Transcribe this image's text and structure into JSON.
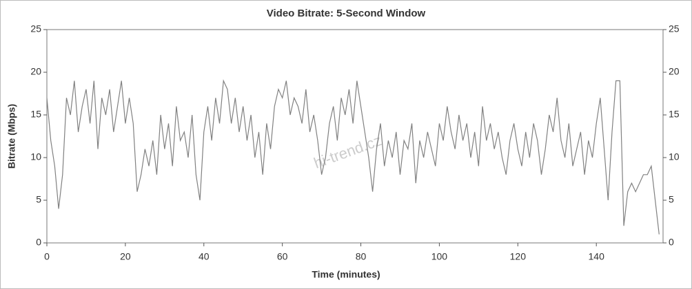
{
  "chart_data": {
    "type": "line",
    "title": "Video Bitrate: 5-Second Window",
    "x_label": "Time (minutes)",
    "y_label": "Bitrate (Mbps)",
    "watermark": "hi-trend.cz",
    "x": [
      0,
      1,
      2,
      3,
      4,
      5,
      6,
      7,
      8,
      9,
      10,
      11,
      12,
      13,
      14,
      15,
      16,
      17,
      18,
      19,
      20,
      21,
      22,
      23,
      24,
      25,
      26,
      27,
      28,
      29,
      30,
      31,
      32,
      33,
      34,
      35,
      36,
      37,
      38,
      39,
      40,
      41,
      42,
      43,
      44,
      45,
      46,
      47,
      48,
      49,
      50,
      51,
      52,
      53,
      54,
      55,
      56,
      57,
      58,
      59,
      60,
      61,
      62,
      63,
      64,
      65,
      66,
      67,
      68,
      69,
      70,
      71,
      72,
      73,
      74,
      75,
      76,
      77,
      78,
      79,
      80,
      81,
      82,
      83,
      84,
      85,
      86,
      87,
      88,
      89,
      90,
      91,
      92,
      93,
      94,
      95,
      96,
      97,
      98,
      99,
      100,
      101,
      102,
      103,
      104,
      105,
      106,
      107,
      108,
      109,
      110,
      111,
      112,
      113,
      114,
      115,
      116,
      117,
      118,
      119,
      120,
      121,
      122,
      123,
      124,
      125,
      126,
      127,
      128,
      129,
      130,
      131,
      132,
      133,
      134,
      135,
      136,
      137,
      138,
      139,
      140,
      141,
      142,
      143,
      144,
      145,
      146,
      147,
      148,
      149,
      150,
      151,
      152,
      153,
      154,
      155,
      156
    ],
    "series": [
      {
        "name": "Bitrate",
        "color": "#808080",
        "values": [
          17,
          12,
          9,
          4,
          8,
          17,
          15,
          19,
          13,
          16,
          18,
          14,
          19,
          11,
          17,
          15,
          18,
          13,
          16,
          19,
          14,
          17,
          14,
          6,
          8,
          11,
          9,
          12,
          8,
          15,
          11,
          14,
          9,
          16,
          12,
          13,
          10,
          15,
          8,
          5,
          13,
          16,
          12,
          17,
          14,
          19,
          18,
          14,
          17,
          13,
          16,
          12,
          15,
          10,
          13,
          8,
          14,
          11,
          16,
          18,
          17,
          19,
          15,
          17,
          16,
          14,
          18,
          13,
          15,
          12,
          8,
          10,
          14,
          16,
          12,
          17,
          15,
          18,
          14,
          19,
          16,
          13,
          10,
          6,
          11,
          14,
          9,
          12,
          10,
          13,
          8,
          12,
          11,
          14,
          7,
          12,
          10,
          13,
          11,
          9,
          14,
          12,
          16,
          13,
          11,
          15,
          12,
          14,
          10,
          13,
          9,
          16,
          12,
          14,
          11,
          13,
          10,
          8,
          12,
          14,
          11,
          9,
          13,
          10,
          14,
          12,
          8,
          11,
          15,
          13,
          17,
          12,
          10,
          14,
          9,
          11,
          13,
          8,
          12,
          10,
          14,
          17,
          11,
          5,
          13,
          19,
          19,
          2,
          6,
          7,
          6,
          7,
          8,
          8,
          9,
          5,
          1
        ]
      }
    ],
    "xlim": [
      0,
      157
    ],
    "ylim": [
      0,
      25
    ],
    "y2lim": [
      0,
      25
    ],
    "xticks": [
      0,
      20,
      40,
      60,
      80,
      100,
      120,
      140
    ],
    "yticks": [
      0,
      5,
      10,
      15,
      20,
      25
    ],
    "y2ticks": [
      0,
      5,
      10,
      15,
      20,
      25
    ]
  }
}
